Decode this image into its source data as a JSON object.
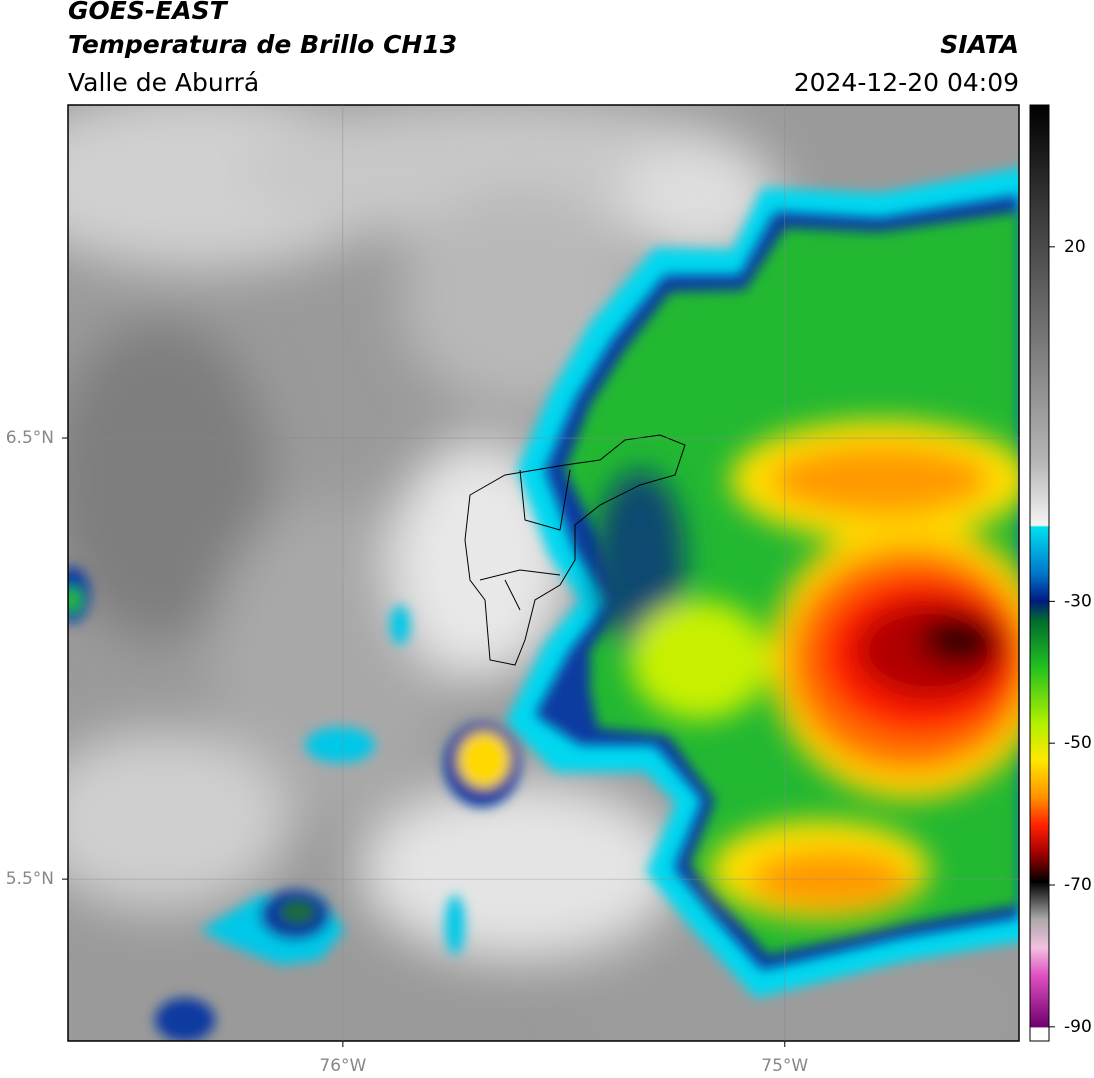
{
  "chart_data": {
    "type": "map",
    "title": "GOES-EAST",
    "subtitle": "Temperatura de Brillo CH13",
    "region": "Valle de Aburrá",
    "source": "SIATA",
    "datetime": "2024-12-20 04:09",
    "xlim": [
      -76.622,
      -74.47
    ],
    "ylim": [
      5.133,
      7.255
    ],
    "xticks": [
      {
        "value": -76,
        "label": "76°W"
      },
      {
        "value": -75,
        "label": "75°W"
      }
    ],
    "yticks": [
      {
        "value": 5.5,
        "label": "5.5°N"
      },
      {
        "value": 6.5,
        "label": "6.5°N"
      }
    ],
    "grid": true,
    "colorbar": {
      "lim": [
        -92,
        40
      ],
      "ticks": [
        -90,
        -70,
        -50,
        -30,
        20
      ]
    }
  }
}
